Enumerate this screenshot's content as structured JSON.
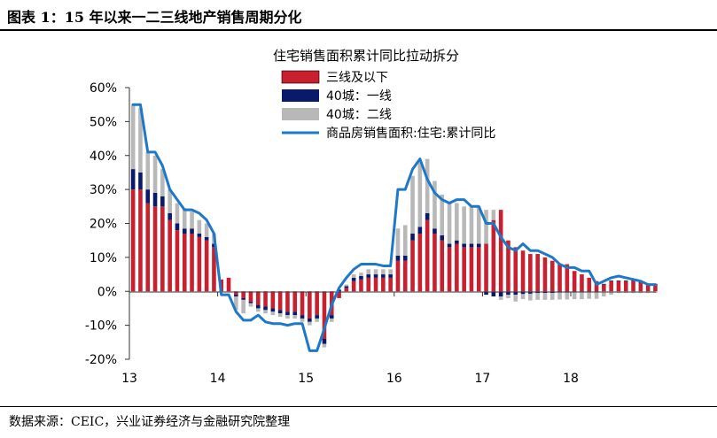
{
  "header": {
    "title": "图表 1：15 年以来一二三线地产销售周期分化"
  },
  "footer": {
    "source": "数据来源：CEIC，兴业证券经济与金融研究院整理"
  },
  "chart_data": {
    "type": "bar",
    "title": "住宅销售面积累计同比拉动拆分",
    "xlabel": "",
    "ylabel": "",
    "ylim": [
      -20,
      60
    ],
    "yticks": [
      "-20%",
      "-10%",
      "0%",
      "10%",
      "20%",
      "30%",
      "40%",
      "50%",
      "60%"
    ],
    "year_labels": [
      "13",
      "14",
      "15",
      "16",
      "17",
      "18"
    ],
    "legend_position": "top-center",
    "grid": false,
    "colors": {
      "tier3": "#c8202e",
      "tier1": "#0a1a6b",
      "tier2": "#b8b8b8",
      "line": "#1e78c8"
    },
    "months": [
      "2013-01",
      "2013-02",
      "2013-03",
      "2013-04",
      "2013-05",
      "2013-06",
      "2013-07",
      "2013-08",
      "2013-09",
      "2013-10",
      "2013-11",
      "2013-12",
      "2014-01",
      "2014-02",
      "2014-03",
      "2014-04",
      "2014-05",
      "2014-06",
      "2014-07",
      "2014-08",
      "2014-09",
      "2014-10",
      "2014-11",
      "2014-12",
      "2015-01",
      "2015-02",
      "2015-03",
      "2015-04",
      "2015-05",
      "2015-06",
      "2015-07",
      "2015-08",
      "2015-09",
      "2015-10",
      "2015-11",
      "2015-12",
      "2016-01",
      "2016-02",
      "2016-03",
      "2016-04",
      "2016-05",
      "2016-06",
      "2016-07",
      "2016-08",
      "2016-09",
      "2016-10",
      "2016-11",
      "2016-12",
      "2017-01",
      "2017-02",
      "2017-03",
      "2017-04",
      "2017-05",
      "2017-06",
      "2017-07",
      "2017-08",
      "2017-09",
      "2017-10",
      "2017-11",
      "2017-12",
      "2018-01",
      "2018-02",
      "2018-03",
      "2018-04",
      "2018-05",
      "2018-06",
      "2018-07",
      "2018-08",
      "2018-09",
      "2018-10",
      "2018-11",
      "2018-12"
    ],
    "series": [
      {
        "name": "三线及以下",
        "values": [
          30,
          30,
          26,
          25,
          25,
          21,
          18,
          17,
          17,
          16,
          15,
          13,
          3.5,
          4,
          -1,
          -2,
          -3,
          -4,
          -4.5,
          -5,
          -5.5,
          -6,
          -6,
          -7,
          -8,
          -7,
          -14,
          -7,
          -2,
          1,
          3,
          3.5,
          4,
          4,
          4,
          4,
          9,
          9,
          15,
          17,
          21,
          17,
          15,
          13,
          14,
          13,
          13,
          13,
          14,
          21,
          24,
          15,
          13,
          12,
          11,
          11,
          10,
          9,
          8,
          8,
          6,
          5,
          4,
          3,
          2,
          3,
          3,
          3,
          3,
          2.5,
          2,
          2
        ]
      },
      {
        "name": "40城：一线",
        "values": [
          6,
          5,
          4,
          4,
          3,
          2,
          2,
          1.5,
          1.5,
          1,
          1,
          1,
          0,
          0,
          -0.5,
          -0.5,
          -0.5,
          -1,
          -1,
          -1,
          -1,
          -1,
          -1,
          -1,
          -1,
          -1,
          -1.5,
          -1,
          0.5,
          0.5,
          1,
          1,
          1,
          1,
          1,
          1,
          1.5,
          1.5,
          2,
          2,
          2,
          1.5,
          1.5,
          1,
          1,
          1,
          1,
          1,
          -1,
          -1.5,
          -1.5,
          -1,
          -1,
          -0.8,
          -0.7,
          -0.5,
          -0.5,
          -0.5,
          -0.4,
          -0.4,
          -0.3,
          -0.3,
          -0.2,
          -0.2,
          0.2,
          0.2,
          0.2,
          0.2,
          0.2,
          0.2,
          0.2,
          0.2
        ]
      },
      {
        "name": "40城：二线",
        "values": [
          19,
          19,
          11,
          11,
          8,
          7,
          6,
          6,
          5,
          4,
          4,
          3,
          0,
          0,
          -4,
          -4,
          -1,
          -1,
          -1,
          -1,
          -1,
          -1,
          -1,
          -1,
          -1,
          -1,
          -1,
          -1,
          0,
          0.5,
          1,
          1,
          1.5,
          1.5,
          1.5,
          1.5,
          8,
          9,
          17,
          19,
          16,
          14,
          12,
          12,
          11,
          11,
          11,
          11,
          10,
          3,
          -1,
          -1,
          -2,
          -1.5,
          -2,
          -2,
          -2,
          -2,
          -2,
          -2,
          -2,
          -2,
          -2,
          -2,
          -1.5,
          -1,
          -0.5,
          -0.5,
          -0.5,
          -0.5,
          -0.5,
          -0.5
        ]
      },
      {
        "name": "商品房销售面积:住宅:累计同比",
        "values": [
          55,
          55,
          41,
          41,
          37,
          30,
          27,
          24,
          24,
          23,
          21,
          17,
          -1,
          -1,
          -6,
          -8.5,
          -8.5,
          -7,
          -9,
          -9.5,
          -9.5,
          -10,
          -9.5,
          -9.5,
          -17.5,
          -17.5,
          -11,
          -4,
          1,
          4,
          6.5,
          8,
          8,
          8,
          7.5,
          7.5,
          30,
          30,
          36,
          39,
          33,
          29,
          27,
          26,
          27,
          27,
          25,
          25,
          20,
          20,
          16,
          13,
          12,
          14,
          12,
          12,
          11,
          10,
          8,
          7,
          7,
          6,
          6,
          2,
          3,
          4,
          4.5,
          4,
          3.5,
          3,
          2,
          2
        ]
      }
    ]
  }
}
